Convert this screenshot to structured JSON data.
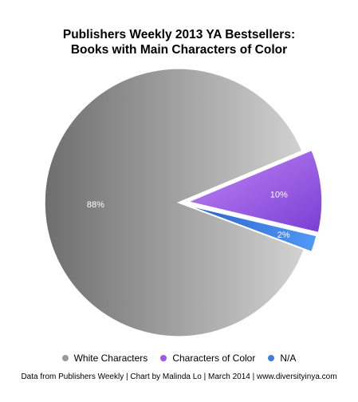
{
  "chart_data": {
    "type": "pie",
    "title": [
      "Publishers Weekly 2013 YA Bestsellers:",
      "Books with Main Characters of Color"
    ],
    "slices": [
      {
        "name": "White Characters",
        "value": 88,
        "label": "88%",
        "color": "#a0a0a0"
      },
      {
        "name": "Characters of Color",
        "value": 10,
        "label": "10%",
        "color": "#9b59e8"
      },
      {
        "name": "N/A",
        "value": 2,
        "label": "2%",
        "color": "#3a7fe0"
      }
    ],
    "legend_position": "bottom-center"
  },
  "footer": "Data from Publishers Weekly | Chart by Malinda Lo | March 2014 | www.diversityinya.com"
}
